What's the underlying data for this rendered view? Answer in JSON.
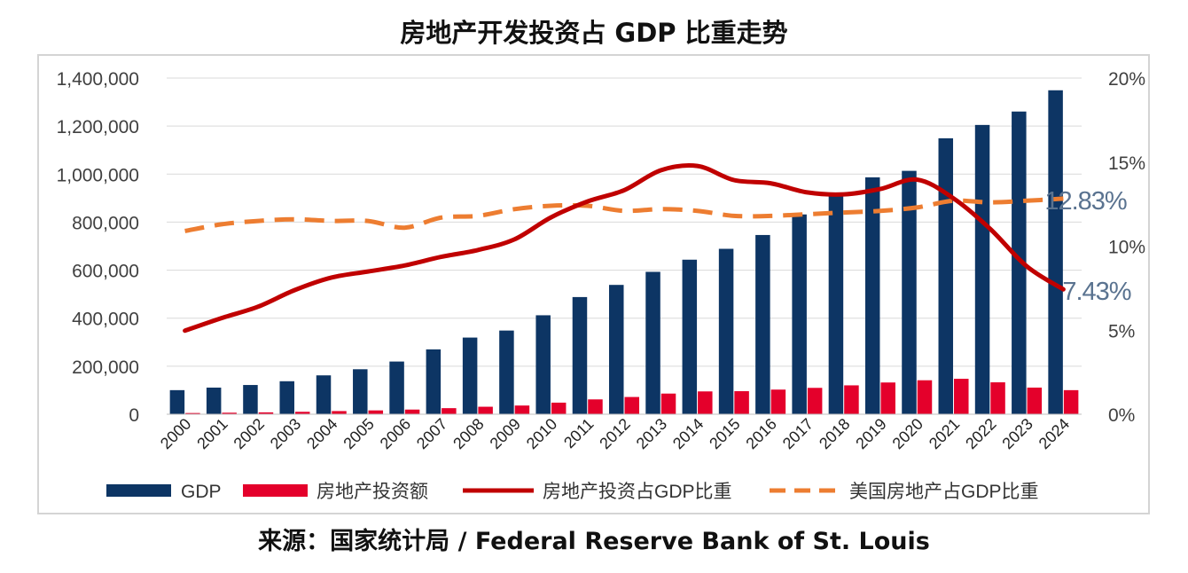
{
  "title": "房地产开发投资占 GDP 比重走势",
  "source": "来源：国家统计局 / Federal Reserve Bank of St. Louis",
  "chart_data": {
    "type": "bar",
    "title": "房地产开发投资占 GDP 比重走势",
    "categories": [
      "2000",
      "2001",
      "2002",
      "2003",
      "2004",
      "2005",
      "2006",
      "2007",
      "2008",
      "2009",
      "2010",
      "2011",
      "2012",
      "2013",
      "2014",
      "2015",
      "2016",
      "2017",
      "2018",
      "2019",
      "2020",
      "2021",
      "2022",
      "2023",
      "2024"
    ],
    "ylim": [
      0,
      1400000
    ],
    "y_ticks": [
      0,
      200000,
      400000,
      600000,
      800000,
      1000000,
      1200000,
      1400000
    ],
    "y_tick_labels": [
      "0",
      "200,000",
      "400,000",
      "600,000",
      "800,000",
      "1,000,000",
      "1,200,000",
      "1,400,000"
    ],
    "y2lim": [
      0,
      20
    ],
    "y2_ticks": [
      0,
      5,
      10,
      15,
      20
    ],
    "y2_tick_labels": [
      "0%",
      "5%",
      "10%",
      "15%",
      "20%"
    ],
    "grid": true,
    "legend_position": "bottom",
    "series": [
      {
        "name": "GDP",
        "type": "bar",
        "axis": "left",
        "color": "#0d3564",
        "values": [
          100280,
          110863,
          121717,
          137422,
          161840,
          187319,
          219438,
          270092,
          319245,
          348518,
          412119,
          487940,
          538580,
          592963,
          643563,
          688858,
          746395,
          832036,
          919281,
          986515,
          1013567,
          1149237,
          1204724,
          1260582,
          1349084
        ]
      },
      {
        "name": "房地产投资额",
        "type": "bar",
        "axis": "left",
        "color": "#e4002b",
        "values": [
          4984,
          6344,
          7791,
          10154,
          13158,
          15909,
          19423,
          25289,
          31203,
          36242,
          48259,
          61797,
          71804,
          86013,
          95036,
          95979,
          102581,
          109799,
          120264,
          132194,
          141443,
          147602,
          132895,
          110913,
          100280
        ]
      },
      {
        "name": "房地产投资占GDP比重",
        "type": "line",
        "axis": "right",
        "color": "#c00000",
        "values": [
          4.97,
          5.72,
          6.4,
          7.39,
          8.13,
          8.49,
          8.85,
          9.36,
          9.77,
          10.4,
          11.71,
          12.66,
          13.33,
          14.51,
          14.77,
          13.93,
          13.74,
          13.2,
          13.08,
          13.4,
          13.96,
          12.84,
          11.03,
          8.8,
          7.43
        ],
        "end_label": "7.43%"
      },
      {
        "name": "美国房地产占GDP比重",
        "type": "line",
        "axis": "right",
        "color": "#ed7d31",
        "dashed": true,
        "values": [
          10.9,
          11.3,
          11.5,
          11.6,
          11.5,
          11.5,
          11.1,
          11.7,
          11.8,
          12.2,
          12.4,
          12.4,
          12.1,
          12.2,
          12.1,
          11.8,
          11.8,
          11.9,
          12.0,
          12.1,
          12.3,
          12.7,
          12.6,
          12.7,
          12.83
        ],
        "end_label": "12.83%"
      }
    ]
  }
}
